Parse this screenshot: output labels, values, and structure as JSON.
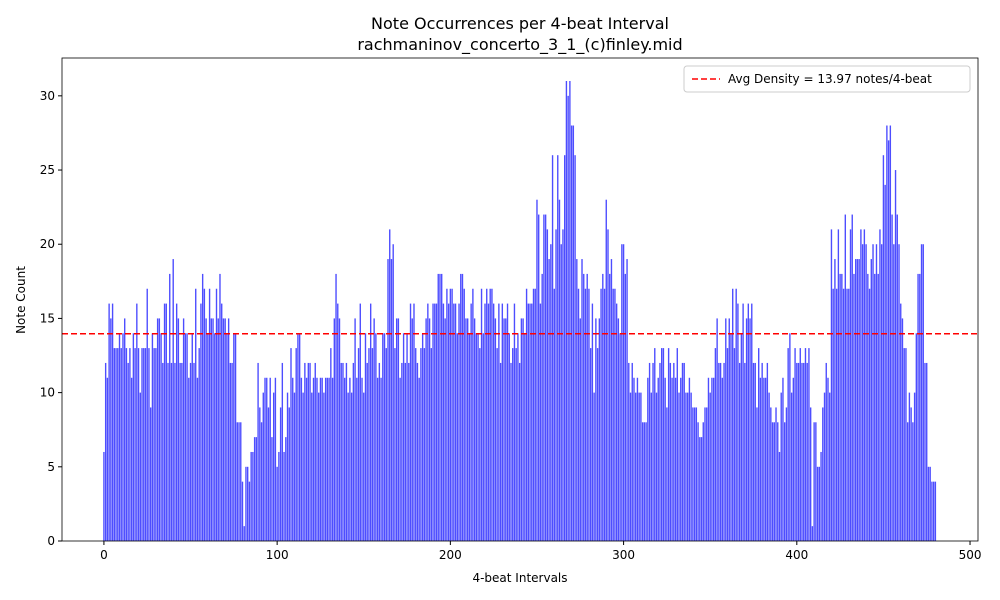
{
  "chart_data": {
    "type": "bar",
    "title": "Note Occurrences per 4-beat Interval",
    "subtitle": "rachmaninov_concerto_3_1_(c)finley.mid",
    "x_label": "4-beat Intervals",
    "y_label": "Note Count",
    "color": "#4d4dff",
    "values": [
      6,
      12,
      11,
      16,
      15,
      16,
      13,
      13,
      13,
      14,
      13,
      14,
      15,
      13,
      12,
      13,
      11,
      14,
      13,
      16,
      13,
      10,
      13,
      13,
      13,
      17,
      13,
      9,
      14,
      13,
      13,
      15,
      15,
      14,
      12,
      16,
      16,
      12,
      18,
      12,
      19,
      12,
      16,
      15,
      12,
      12,
      15,
      14,
      14,
      11,
      12,
      14,
      12,
      17,
      11,
      13,
      16,
      18,
      17,
      15,
      14,
      17,
      15,
      15,
      14,
      17,
      15,
      18,
      16,
      15,
      15,
      14,
      15,
      12,
      12,
      14,
      14,
      8,
      8,
      8,
      4,
      1,
      5,
      5,
      4,
      6,
      6,
      7,
      7,
      12,
      9,
      8,
      10,
      11,
      11,
      9,
      11,
      7,
      10,
      11,
      5,
      6,
      9,
      12,
      6,
      7,
      10,
      9,
      13,
      11,
      10,
      13,
      14,
      14,
      11,
      10,
      12,
      11,
      12,
      12,
      10,
      11,
      12,
      11,
      10,
      11,
      11,
      10,
      11,
      11,
      11,
      13,
      11,
      15,
      18,
      16,
      15,
      12,
      12,
      11,
      12,
      10,
      11,
      10,
      12,
      15,
      11,
      13,
      16,
      11,
      10,
      14,
      12,
      13,
      16,
      13,
      15,
      14,
      11,
      12,
      11,
      14,
      14,
      13,
      19,
      21,
      19,
      20,
      13,
      15,
      15,
      11,
      12,
      14,
      12,
      14,
      12,
      16,
      15,
      16,
      13,
      12,
      11,
      13,
      14,
      13,
      15,
      16,
      15,
      13,
      16,
      16,
      16,
      18,
      18,
      18,
      16,
      15,
      17,
      16,
      17,
      17,
      16,
      16,
      14,
      16,
      18,
      18,
      17,
      15,
      15,
      14,
      16,
      17,
      15,
      14,
      14,
      13,
      17,
      14,
      16,
      17,
      16,
      17,
      17,
      16,
      15,
      13,
      16,
      12,
      16,
      15,
      15,
      16,
      14,
      12,
      13,
      16,
      13,
      14,
      12,
      15,
      15,
      14,
      17,
      16,
      16,
      16,
      17,
      17,
      23,
      22,
      16,
      18,
      22,
      22,
      21,
      19,
      20,
      26,
      17,
      21,
      26,
      23,
      20,
      21,
      26,
      31,
      30,
      31,
      28,
      28,
      26,
      19,
      17,
      15,
      19,
      18,
      17,
      18,
      17,
      13,
      16,
      10,
      15,
      13,
      15,
      17,
      18,
      17,
      23,
      21,
      18,
      19,
      17,
      17,
      16,
      15,
      14,
      20,
      20,
      18,
      19,
      12,
      10,
      12,
      11,
      10,
      11,
      10,
      10,
      8,
      8,
      8,
      11,
      12,
      10,
      12,
      13,
      10,
      11,
      12,
      13,
      13,
      11,
      9,
      13,
      12,
      11,
      12,
      11,
      13,
      10,
      11,
      12,
      12,
      10,
      10,
      11,
      10,
      9,
      9,
      9,
      8,
      7,
      7,
      8,
      9,
      9,
      11,
      10,
      11,
      11,
      13,
      15,
      12,
      12,
      11,
      12,
      15,
      13,
      15,
      14,
      17,
      13,
      17,
      16,
      12,
      14,
      16,
      12,
      15,
      16,
      15,
      16,
      12,
      12,
      9,
      13,
      11,
      12,
      11,
      11,
      12,
      10,
      9,
      8,
      8,
      9,
      8,
      6,
      10,
      11,
      8,
      9,
      13,
      14,
      10,
      11,
      13,
      12,
      12,
      13,
      12,
      12,
      13,
      12,
      13,
      9,
      1,
      8,
      8,
      5,
      5,
      6,
      9,
      10,
      12,
      11,
      10,
      21,
      17,
      19,
      17,
      21,
      18,
      18,
      17,
      22,
      17,
      17,
      21,
      22,
      18,
      19,
      19,
      19,
      21,
      20,
      21,
      20,
      18,
      17,
      19,
      20,
      18,
      20,
      18,
      21,
      20,
      26,
      24,
      28,
      27,
      28,
      22,
      20,
      25,
      22,
      20,
      16,
      15,
      13,
      13,
      8,
      10,
      9,
      8,
      10,
      14,
      18,
      18,
      20,
      20,
      12,
      12,
      5,
      5,
      4,
      4,
      4
    ],
    "bar_width": 0.8,
    "xlim": [
      -24.2,
      504.6
    ],
    "xticks": [
      0,
      100,
      200,
      300,
      400,
      500
    ],
    "ylim": [
      0,
      32.55
    ],
    "yticks": [
      0,
      5,
      10,
      15,
      20,
      25,
      30
    ],
    "reference_line": {
      "value": 13.97,
      "label": "Avg Density = 13.97 notes/4-beat",
      "color": "#ff0000"
    },
    "legend": "upper right"
  }
}
